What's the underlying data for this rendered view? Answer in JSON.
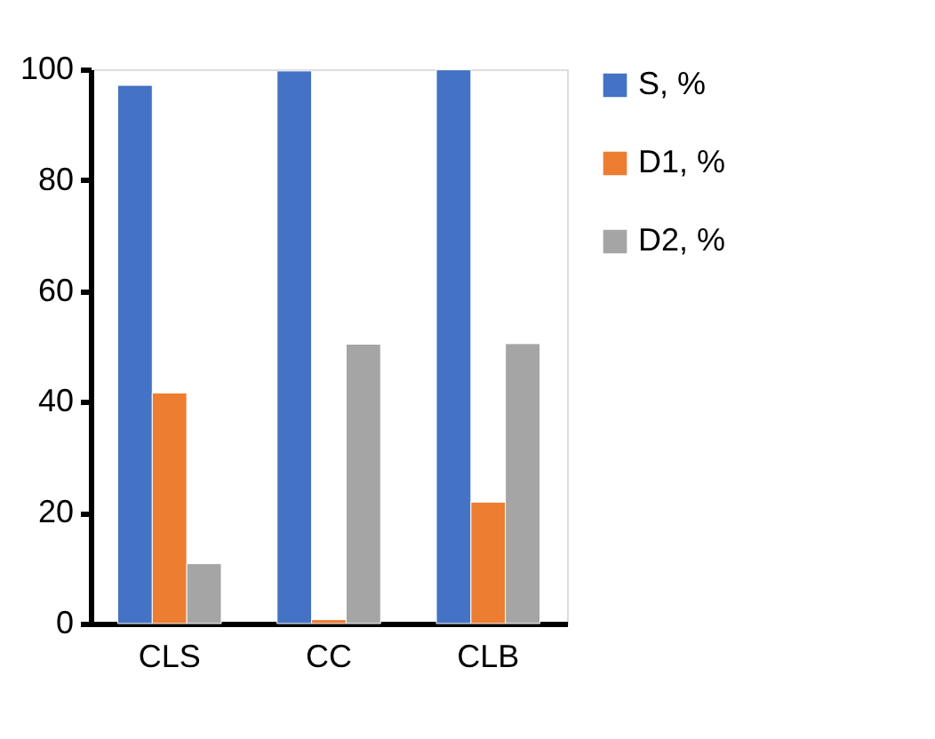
{
  "chart_data": {
    "type": "bar",
    "categories": [
      "CLS",
      "CC",
      "CLB"
    ],
    "series": [
      {
        "name": "S, %",
        "color": "#4472c4",
        "values": [
          97.1,
          99.7,
          99.9
        ]
      },
      {
        "name": "D1, %",
        "color": "#ed7d31",
        "values": [
          41.6,
          0.7,
          21.9
        ]
      },
      {
        "name": "D2, %",
        "color": "#a5a5a5",
        "values": [
          10.8,
          50.4,
          50.5
        ]
      }
    ],
    "ylim": [
      0,
      100
    ],
    "yticks": [
      0,
      20,
      40,
      60,
      80,
      100
    ],
    "grid": false,
    "legend": "right"
  }
}
